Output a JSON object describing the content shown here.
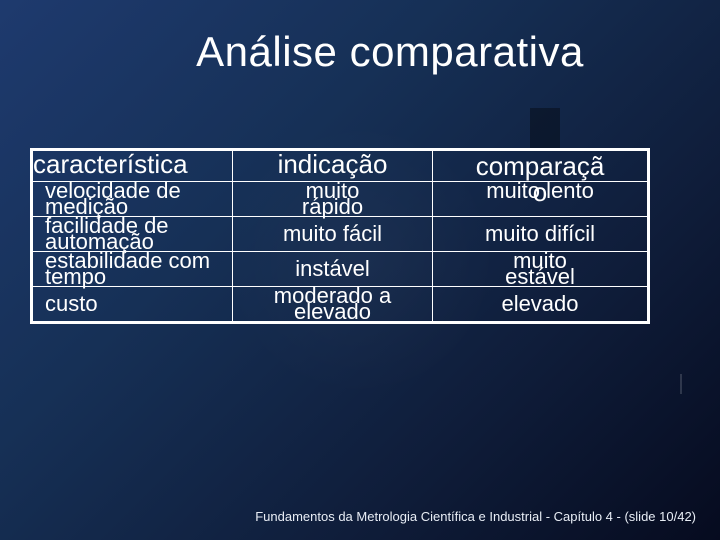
{
  "title": "Análise comparativa",
  "table": {
    "headers": {
      "col0": "característica",
      "col1": "indicação",
      "col2_line1": "comparaçã",
      "col2_line2": "o"
    },
    "rows": [
      {
        "c0_top": "velocidade de",
        "c0_bot": "medição",
        "c1_top": "muito",
        "c1_bot": "rápido",
        "c2_top": "muito lento",
        "c2_bot": ""
      },
      {
        "c0_top": "facilidade de",
        "c0_bot": "automação",
        "c1_top": "muito fácil",
        "c1_bot": "",
        "c2_top": "muito difícil",
        "c2_bot": ""
      },
      {
        "c0_top": "estabilidade com",
        "c0_bot": "tempo",
        "c1_top": "instável",
        "c1_bot": "",
        "c2_top": "muito",
        "c2_bot": "estável"
      },
      {
        "c0_top": "custo",
        "c0_bot": "",
        "c1_top": "moderado a",
        "c1_bot": "elevado",
        "c2_top": "elevado",
        "c2_bot": ""
      }
    ]
  },
  "footer": "Fundamentos da Metrologia Científica e Industrial - Capítulo 4 -  (slide 10/42)",
  "colors": {
    "bg_start": "#1e3a6e",
    "bg_end": "#060b1f",
    "text": "#ffffff",
    "border": "#ffffff"
  }
}
